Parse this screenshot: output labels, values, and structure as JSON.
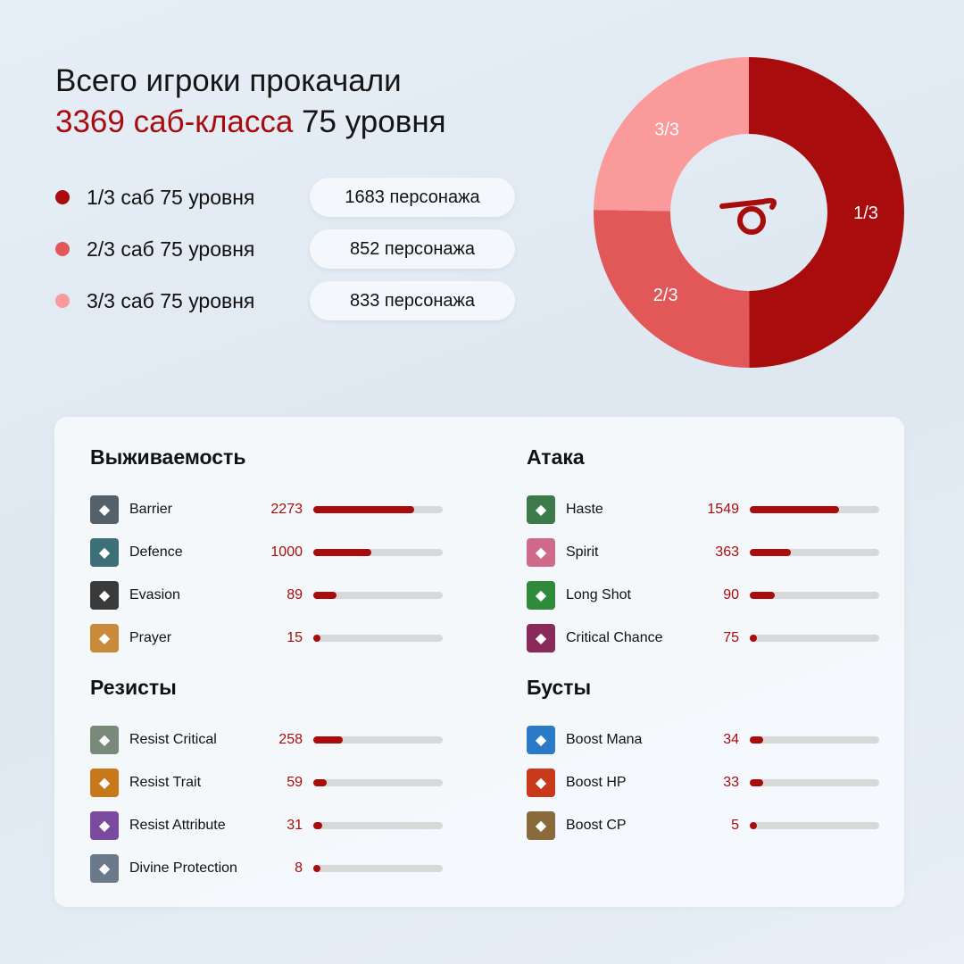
{
  "header": {
    "line1": "Всего игроки прокачали",
    "line2_accent": "3369 саб-класса",
    "line2_rest": " 75 уровня"
  },
  "chart_data": {
    "type": "pie",
    "donut": true,
    "slices": [
      {
        "label": "1/3",
        "legend": "1/3 саб 75 уровня",
        "value": 1683,
        "value_label": "1683 персонажа",
        "color": "#a80c0c"
      },
      {
        "label": "2/3",
        "legend": "2/3 саб 75 уровня",
        "value": 852,
        "value_label": "852 персонажа",
        "color": "#e25858"
      },
      {
        "label": "3/3",
        "legend": "3/3 саб 75 уровня",
        "value": 833,
        "value_label": "833 персонажа",
        "color": "#fb9a9a"
      }
    ],
    "center_icon": "logo-icon"
  },
  "sections": [
    {
      "title": "Выживаемость",
      "items": [
        {
          "name": "Barrier",
          "value": "2273",
          "fill": 0.78,
          "icon": "#55606a"
        },
        {
          "name": "Defence",
          "value": "1000",
          "fill": 0.45,
          "icon": "#3c6f77"
        },
        {
          "name": "Evasion",
          "value": "89",
          "fill": 0.18,
          "icon": "#3a3a3a"
        },
        {
          "name": "Prayer",
          "value": "15",
          "fill": 0.04,
          "icon": "#c98a3a"
        }
      ]
    },
    {
      "title": "Атака",
      "items": [
        {
          "name": "Haste",
          "value": "1549",
          "fill": 0.69,
          "icon": "#3d7a4a"
        },
        {
          "name": "Spirit",
          "value": "363",
          "fill": 0.32,
          "icon": "#d06a8a"
        },
        {
          "name": "Long Shot",
          "value": "90",
          "fill": 0.19,
          "icon": "#2f8a3a"
        },
        {
          "name": "Critical Chance",
          "value": "75",
          "fill": 0.04,
          "icon": "#8a2a5a"
        }
      ]
    },
    {
      "title": "Резисты",
      "items": [
        {
          "name": "Resist Critical",
          "value": "258",
          "fill": 0.23,
          "icon": "#7a8a7a"
        },
        {
          "name": "Resist Trait",
          "value": "59",
          "fill": 0.1,
          "icon": "#c8781a"
        },
        {
          "name": "Resist Attribute",
          "value": "31",
          "fill": 0.07,
          "icon": "#7a4aa0"
        },
        {
          "name": "Divine Protection",
          "value": "8",
          "fill": 0.04,
          "icon": "#6a7a8a"
        }
      ]
    },
    {
      "title": "Бусты",
      "items": [
        {
          "name": "Boost Mana",
          "value": "34",
          "fill": 0.1,
          "icon": "#2a7ac8"
        },
        {
          "name": "Boost HP",
          "value": "33",
          "fill": 0.1,
          "icon": "#c83a1a"
        },
        {
          "name": "Boost CP",
          "value": "5",
          "fill": 0.04,
          "icon": "#8a6a3a"
        }
      ]
    }
  ]
}
